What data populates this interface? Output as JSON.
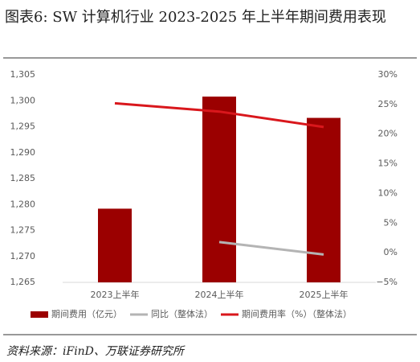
{
  "chart_data": {
    "type": "bar",
    "title": "图表6:  SW 计算机行业 2023-2025 年上半年期间费用表现",
    "source": "资料来源：iFinD、万联证券研究所",
    "categories": [
      "2023上半年",
      "2024上半年",
      "2025上半年"
    ],
    "series": [
      {
        "name": "期间费用（亿元）",
        "type": "bar",
        "color": "#9b0000",
        "values": [
          1279.2,
          1300.8,
          1296.7
        ]
      },
      {
        "name": "同比（整体法）",
        "type": "line",
        "axis": "y2",
        "color": "#b4b4b4",
        "values": [
          null,
          1.8,
          -0.3
        ]
      },
      {
        "name": "期间费用率（%）（整体法）",
        "type": "line",
        "axis": "y2",
        "color": "#d9171c",
        "values": [
          25.2,
          23.8,
          21.2
        ]
      }
    ],
    "ylim": [
      1265,
      1305
    ],
    "yticks": [
      {
        "value": 1265,
        "label": "1,265"
      },
      {
        "value": 1270,
        "label": "1,270"
      },
      {
        "value": 1275,
        "label": "1,275"
      },
      {
        "value": 1280,
        "label": "1,280"
      },
      {
        "value": 1285,
        "label": "1,285"
      },
      {
        "value": 1290,
        "label": "1,290"
      },
      {
        "value": 1295,
        "label": "1,295"
      },
      {
        "value": 1300,
        "label": "1,300"
      },
      {
        "value": 1305,
        "label": "1,305"
      }
    ],
    "y2lim": [
      -5,
      30
    ],
    "y2ticks": [
      {
        "value": -5,
        "label": "−5%"
      },
      {
        "value": 0,
        "label": "0%"
      },
      {
        "value": 5,
        "label": "5%"
      },
      {
        "value": 10,
        "label": "10%"
      },
      {
        "value": 15,
        "label": "15%"
      },
      {
        "value": 20,
        "label": "20%"
      },
      {
        "value": 25,
        "label": "25%"
      },
      {
        "value": 30,
        "label": "30%"
      }
    ],
    "grid": false,
    "legend": "bottom"
  }
}
